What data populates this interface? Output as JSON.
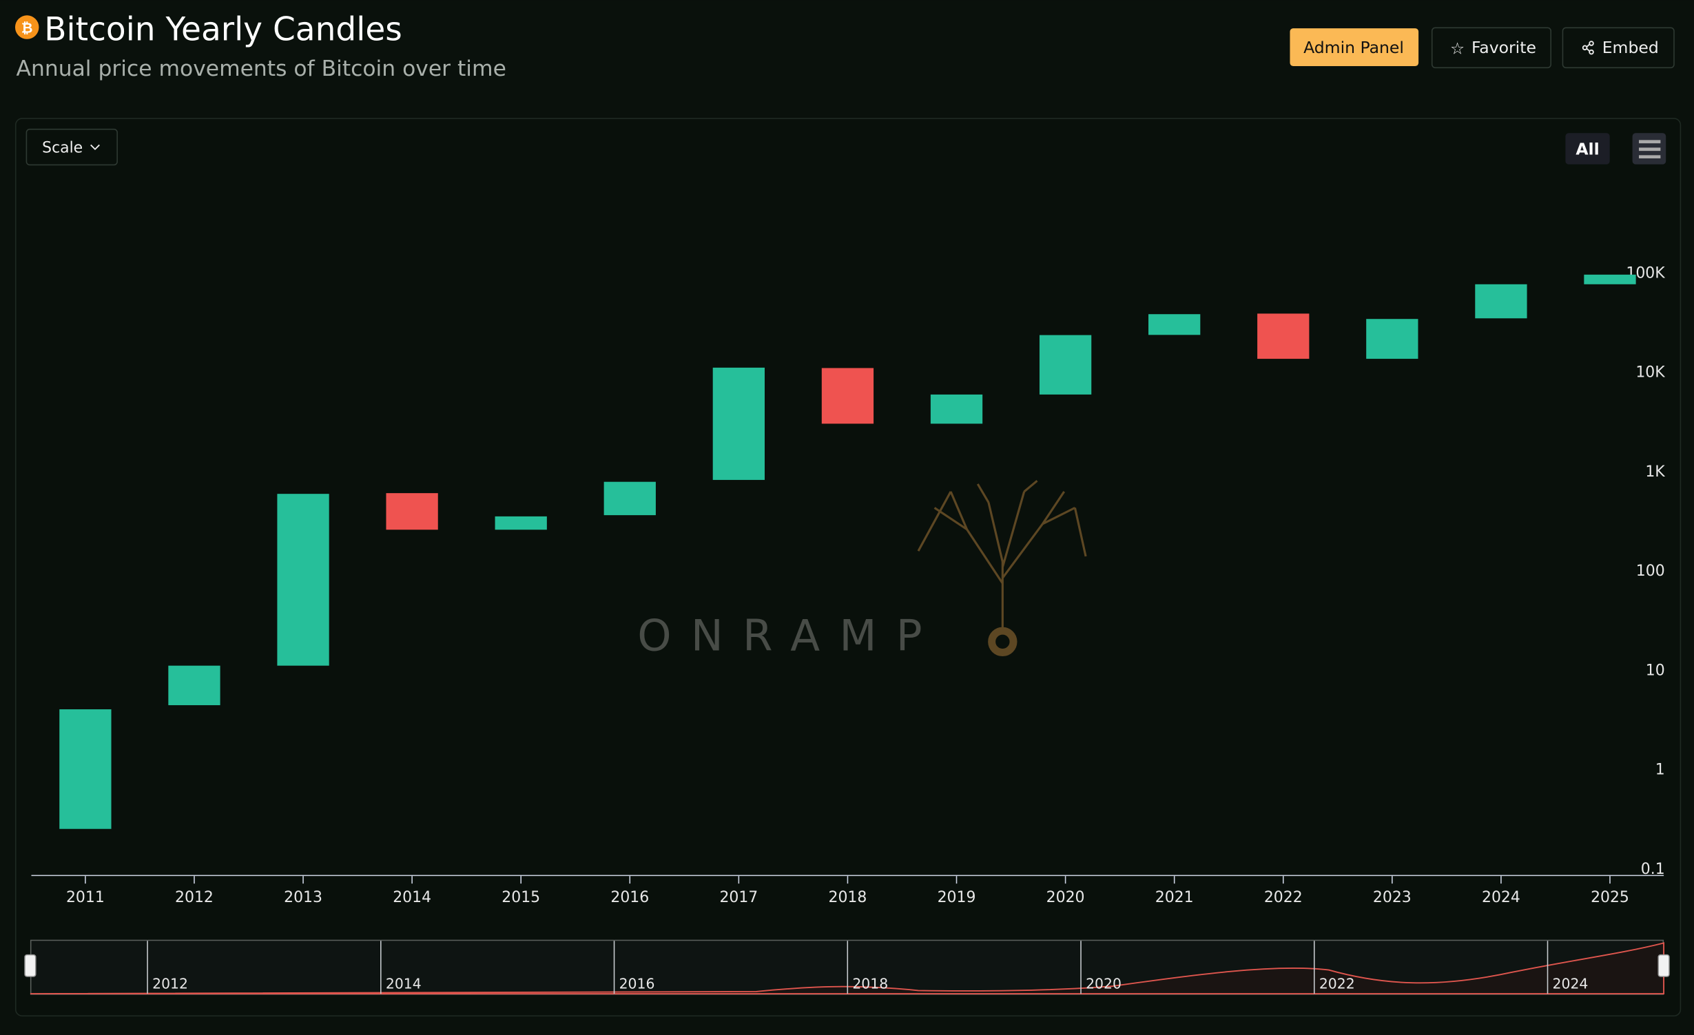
{
  "header": {
    "title": "Bitcoin Yearly Candles",
    "subtitle": "Annual price movements of Bitcoin over time",
    "buttons": [
      "Admin Panel",
      "Favorite",
      "Embed"
    ]
  },
  "toolbar": {
    "scale": "Scale",
    "range": "All"
  },
  "watermark": "ONRAMP",
  "navigator": {
    "labels": [
      "2012",
      "2014",
      "2016",
      "2018",
      "2020",
      "2022",
      "2024"
    ]
  },
  "chart_data": {
    "type": "candlestick",
    "categories": [
      "2011",
      "2012",
      "2013",
      "2014",
      "2015",
      "2016",
      "2017",
      "2018",
      "2019",
      "2020",
      "2021",
      "2022",
      "2023",
      "2024",
      "2025"
    ],
    "open": [
      0.25,
      4.4,
      11,
      600,
      257,
      360,
      815,
      10900,
      3000,
      5900,
      23500,
      38500,
      13500,
      34500,
      76000
    ],
    "close": [
      4,
      11,
      590,
      257,
      350,
      780,
      11000,
      3000,
      5900,
      23400,
      38000,
      13500,
      34000,
      76000,
      95000
    ],
    "up_color": "#26bf9a",
    "down_color": "#ef5350",
    "log_scale": true,
    "ylim": [
      0.086,
      780000
    ],
    "yticks": [
      0.1,
      1,
      10,
      100,
      {
        "value": 1000,
        "label": "1K"
      },
      {
        "value": 10000,
        "label": "10K"
      },
      {
        "value": 100000,
        "label": "100K"
      }
    ]
  }
}
